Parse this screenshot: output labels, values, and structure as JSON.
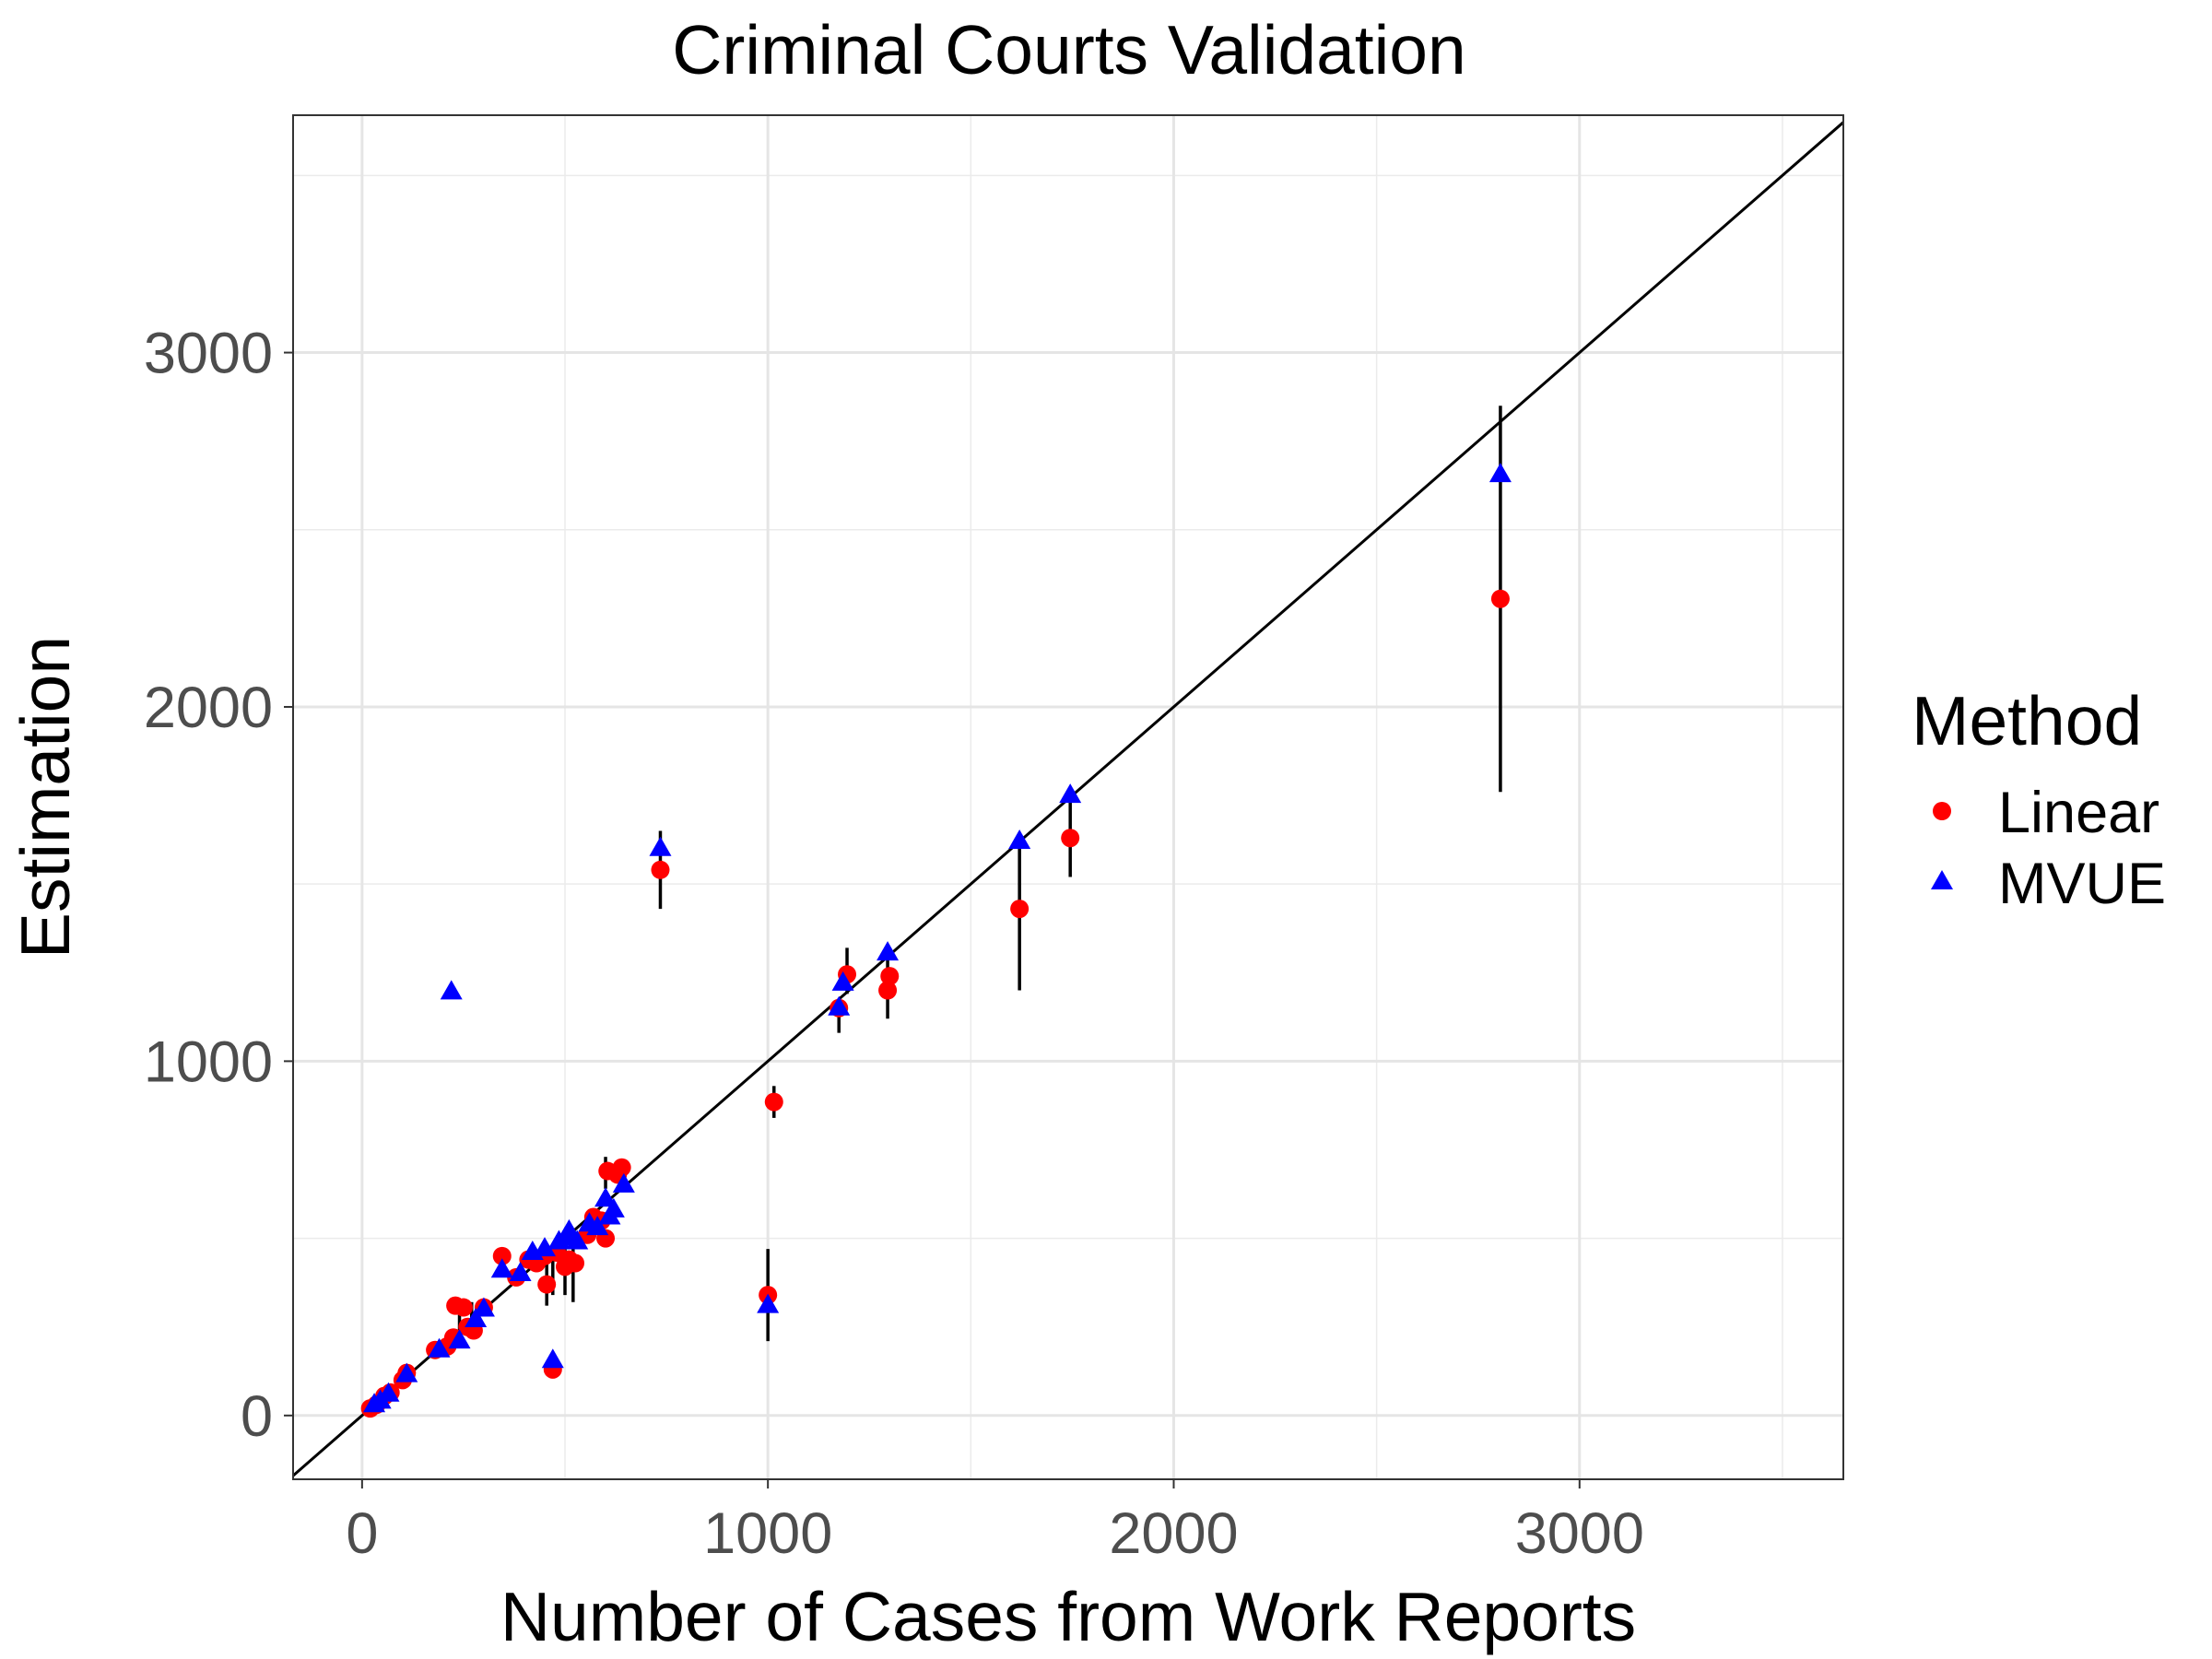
{
  "chart_data": {
    "type": "scatter",
    "title": "Criminal Courts Validation",
    "xlabel": "Number of Cases from Work Reports",
    "ylabel": "Estimation",
    "xlim": [
      -170,
      3650
    ],
    "ylim": [
      -180,
      3670
    ],
    "x_ticks": [
      0,
      1000,
      2000,
      3000
    ],
    "y_ticks": [
      0,
      1000,
      2000,
      3000
    ],
    "x_minor": [
      500,
      1500,
      2500,
      3500
    ],
    "y_minor": [
      500,
      1500,
      2500,
      3500
    ],
    "grid": true,
    "reference_line": "y = x",
    "legend": {
      "title": "Method",
      "position": "right",
      "entries": [
        {
          "label": "Linear",
          "shape": "circle",
          "color": "#ff0000"
        },
        {
          "label": "MVUE",
          "shape": "triangle",
          "color": "#0000ff"
        }
      ]
    },
    "error_bars": [
      {
        "x": 2805,
        "low": 1760,
        "high": 2850
      },
      {
        "x": 1745,
        "low": 1520,
        "high": 1740
      },
      {
        "x": 1620,
        "low": 1200,
        "high": 1620
      },
      {
        "x": 1295,
        "low": 1120,
        "high": 1300
      },
      {
        "x": 1195,
        "low": 1190,
        "high": 1320
      },
      {
        "x": 1175,
        "low": 1080,
        "high": 1160
      },
      {
        "x": 1015,
        "low": 840,
        "high": 930
      },
      {
        "x": 1000,
        "low": 210,
        "high": 470
      },
      {
        "x": 735,
        "low": 1430,
        "high": 1650
      },
      {
        "x": 600,
        "low": 640,
        "high": 730
      },
      {
        "x": 520,
        "low": 320,
        "high": 500
      },
      {
        "x": 500,
        "low": 340,
        "high": 510
      },
      {
        "x": 470,
        "low": 340,
        "high": 480
      },
      {
        "x": 455,
        "low": 310,
        "high": 430
      },
      {
        "x": 240,
        "low": 210,
        "high": 320
      },
      {
        "x": 270,
        "low": 240,
        "high": 320
      }
    ],
    "series": [
      {
        "name": "Linear",
        "x": [
          20,
          35,
          55,
          70,
          100,
          110,
          180,
          210,
          225,
          230,
          250,
          260,
          275,
          300,
          345,
          380,
          410,
          430,
          450,
          455,
          470,
          480,
          500,
          510,
          525,
          555,
          570,
          590,
          600,
          605,
          630,
          640,
          735,
          1000,
          1015,
          1175,
          1195,
          1295,
          1300,
          1620,
          1745,
          2805
        ],
        "y": [
          20,
          30,
          55,
          65,
          100,
          120,
          185,
          195,
          220,
          310,
          305,
          250,
          240,
          305,
          450,
          390,
          440,
          430,
          450,
          370,
          130,
          460,
          420,
          440,
          430,
          510,
          560,
          550,
          500,
          690,
          680,
          700,
          1540,
          340,
          885,
          1150,
          1245,
          1200,
          1240,
          1430,
          1630,
          2305
        ]
      },
      {
        "name": "MVUE",
        "x": [
          30,
          45,
          65,
          110,
          190,
          220,
          240,
          280,
          300,
          345,
          390,
          420,
          450,
          470,
          485,
          500,
          510,
          530,
          560,
          580,
          600,
          610,
          620,
          645,
          735,
          1000,
          1175,
          1185,
          1295,
          1620,
          1745,
          2805
        ],
        "y": [
          30,
          40,
          60,
          115,
          185,
          1195,
          210,
          270,
          300,
          410,
          400,
          460,
          470,
          155,
          490,
          500,
          520,
          490,
          540,
          530,
          610,
          560,
          580,
          650,
          1600,
          310,
          1150,
          1220,
          1305,
          1620,
          1750,
          2655
        ]
      }
    ]
  }
}
